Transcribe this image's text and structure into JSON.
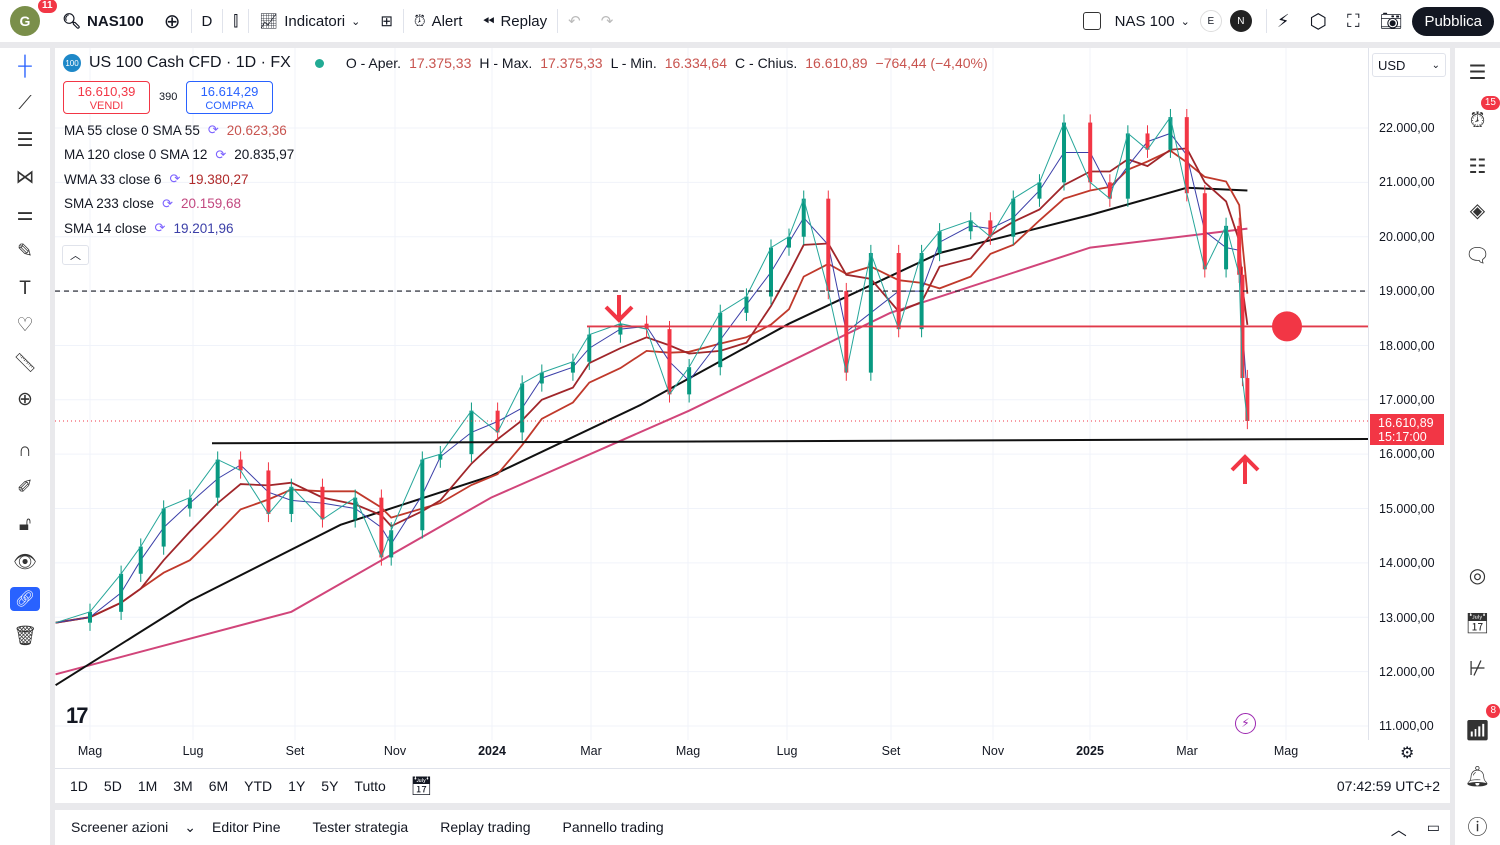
{
  "topbar": {
    "avatar_letter": "G",
    "avatar_badge": "11",
    "symbol": "NAS100",
    "interval": "D",
    "indicators": "Indicatori",
    "alert": "Alert",
    "replay": "Replay",
    "layout_name": "NAS 100",
    "e_label": "E",
    "n_label": "N",
    "publish": "Pubblica"
  },
  "legend": {
    "title": "US 100 Cash CFD · 1D · FX",
    "o_label": "O - Aper.",
    "o": "17.375,33",
    "h_label": "H - Max.",
    "h": "17.375,33",
    "l_label": "L - Min.",
    "l": "16.334,64",
    "c_label": "C - Chius.",
    "c": "16.610,89",
    "change": "−764,44 (−4,40%)",
    "logo": "100"
  },
  "trade": {
    "sell_price": "16.610,39",
    "sell_label": "VENDI",
    "spread": "390",
    "buy_price": "16.614,29",
    "buy_label": "COMPRA"
  },
  "indicators": [
    {
      "label": "MA 55 close 0 SMA 55",
      "value": "20.623,36",
      "color": "#c8544f"
    },
    {
      "label": "MA 120 close 0 SMA 12",
      "value": "20.835,97",
      "color": "#131722"
    },
    {
      "label": "WMA 33 close 6",
      "value": "19.380,27",
      "color": "#b02a2a"
    },
    {
      "label": "SMA 233 close",
      "value": "20.159,68",
      "color": "#c2477f"
    },
    {
      "label": "SMA 14 close",
      "value": "19.201,96",
      "color": "#3b3fa8"
    }
  ],
  "currency": "USD",
  "price_axis": [
    "22.000,00",
    "21.000,00",
    "20.000,00",
    "19.000,00",
    "18.000,00",
    "17.000,00",
    "16.000,00",
    "15.000,00",
    "14.000,00",
    "13.000,00",
    "12.000,00",
    "11.000,00"
  ],
  "last_price": {
    "value": "16.610,89",
    "countdown": "15:17:00",
    "color": "#f23645"
  },
  "time_axis": [
    "Mag",
    "Lug",
    "Set",
    "Nov",
    "2024",
    "Mar",
    "Mag",
    "Lug",
    "Set",
    "Nov",
    "2025",
    "Mar",
    "Mag"
  ],
  "ranges": [
    "1D",
    "5D",
    "1M",
    "3M",
    "6M",
    "YTD",
    "1Y",
    "5Y",
    "Tutto"
  ],
  "clock": "07:42:59 UTC+2",
  "bottom_tabs": [
    "Screener azioni",
    "Editor Pine",
    "Tester strategia",
    "Replay trading",
    "Pannello trading"
  ],
  "right_badges": {
    "alerts": "15",
    "notifications": "8"
  },
  "chart_data": {
    "type": "line",
    "price": [
      [
        "2023-04-10",
        12900
      ],
      [
        "2023-05-01",
        13100
      ],
      [
        "2023-05-20",
        13800
      ],
      [
        "2023-06-01",
        14300
      ],
      [
        "2023-06-15",
        15000
      ],
      [
        "2023-07-01",
        15200
      ],
      [
        "2023-07-18",
        15900
      ],
      [
        "2023-08-01",
        15700
      ],
      [
        "2023-08-18",
        14900
      ],
      [
        "2023-09-01",
        15400
      ],
      [
        "2023-09-20",
        14800
      ],
      [
        "2023-10-10",
        15200
      ],
      [
        "2023-10-26",
        14100
      ],
      [
        "2023-11-01",
        14600
      ],
      [
        "2023-11-20",
        15900
      ],
      [
        "2023-12-01",
        16000
      ],
      [
        "2023-12-20",
        16800
      ],
      [
        "2024-01-05",
        16400
      ],
      [
        "2024-01-20",
        17300
      ],
      [
        "2024-02-01",
        17500
      ],
      [
        "2024-02-20",
        17700
      ],
      [
        "2024-03-01",
        18200
      ],
      [
        "2024-03-20",
        18400
      ],
      [
        "2024-04-05",
        18300
      ],
      [
        "2024-04-19",
        17100
      ],
      [
        "2024-05-01",
        17600
      ],
      [
        "2024-05-20",
        18600
      ],
      [
        "2024-06-05",
        18900
      ],
      [
        "2024-06-20",
        19800
      ],
      [
        "2024-07-01",
        20000
      ],
      [
        "2024-07-10",
        20700
      ],
      [
        "2024-07-25",
        19000
      ],
      [
        "2024-08-05",
        17500
      ],
      [
        "2024-08-20",
        19700
      ],
      [
        "2024-09-06",
        18300
      ],
      [
        "2024-09-20",
        19700
      ],
      [
        "2024-10-01",
        20100
      ],
      [
        "2024-10-20",
        20300
      ],
      [
        "2024-11-01",
        20000
      ],
      [
        "2024-11-15",
        20700
      ],
      [
        "2024-12-01",
        21000
      ],
      [
        "2024-12-16",
        22100
      ],
      [
        "2025-01-01",
        21000
      ],
      [
        "2025-01-13",
        20700
      ],
      [
        "2025-01-24",
        21900
      ],
      [
        "2025-02-05",
        21600
      ],
      [
        "2025-02-19",
        22200
      ],
      [
        "2025-03-01",
        20800
      ],
      [
        "2025-03-12",
        19400
      ],
      [
        "2025-03-25",
        20200
      ],
      [
        "2025-04-02",
        19300
      ],
      [
        "2025-04-04",
        17400
      ],
      [
        "2025-04-07",
        16610
      ]
    ],
    "sma_black": [
      [
        "2023-04-10",
        11750
      ],
      [
        "2023-07-01",
        13300
      ],
      [
        "2023-10-01",
        14700
      ],
      [
        "2024-01-01",
        15600
      ],
      [
        "2024-04-01",
        16900
      ],
      [
        "2024-07-01",
        18400
      ],
      [
        "2024-10-01",
        19700
      ],
      [
        "2025-01-01",
        20400
      ],
      [
        "2025-03-01",
        20900
      ],
      [
        "2025-04-07",
        20850
      ]
    ],
    "sma_pink": [
      [
        "2023-04-10",
        11950
      ],
      [
        "2023-09-01",
        13100
      ],
      [
        "2024-01-01",
        15200
      ],
      [
        "2024-05-01",
        16800
      ],
      [
        "2024-09-01",
        18600
      ],
      [
        "2025-01-01",
        19800
      ],
      [
        "2025-04-07",
        20150
      ]
    ],
    "levels": {
      "dashed": 19000,
      "red_resistance": 18350,
      "black_support_start": 16200,
      "black_support_end": 16280,
      "current": 16610.89
    },
    "ylim": [
      11000,
      22000
    ]
  }
}
